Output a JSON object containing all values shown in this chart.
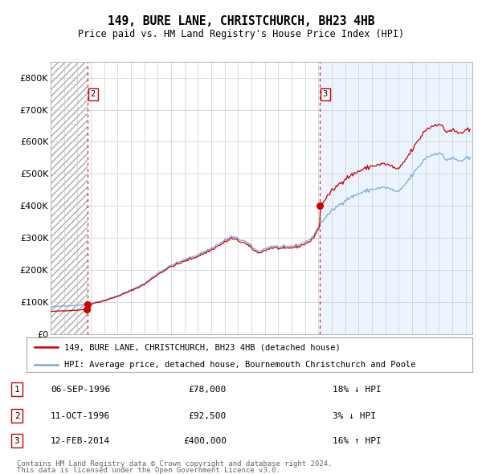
{
  "title1": "149, BURE LANE, CHRISTCHURCH, BH23 4HB",
  "title2": "Price paid vs. HM Land Registry's House Price Index (HPI)",
  "legend1": "149, BURE LANE, CHRISTCHURCH, BH23 4HB (detached house)",
  "legend2": "HPI: Average price, detached house, Bournemouth Christchurch and Poole",
  "transactions": [
    {
      "label": "1",
      "date": "06-SEP-1996",
      "date_num": 1996.69,
      "price": 78000,
      "hpi_pct": "18% ↓ HPI"
    },
    {
      "label": "2",
      "date": "11-OCT-1996",
      "date_num": 1996.78,
      "price": 92500,
      "hpi_pct": "3% ↓ HPI"
    },
    {
      "label": "3",
      "date": "12-FEB-2014",
      "date_num": 2014.12,
      "price": 400000,
      "hpi_pct": "16% ↑ HPI"
    }
  ],
  "vline_dates": [
    1996.78,
    2014.12
  ],
  "vline_labels": [
    "2",
    "3"
  ],
  "table_rows": [
    [
      "1",
      "06-SEP-1996",
      "£78,000",
      "18% ↓ HPI"
    ],
    [
      "2",
      "11-OCT-1996",
      "£92,500",
      "3% ↓ HPI"
    ],
    [
      "3",
      "12-FEB-2014",
      "£400,000",
      "16% ↑ HPI"
    ]
  ],
  "footnote1": "Contains HM Land Registry data © Crown copyright and database right 2024.",
  "footnote2": "This data is licensed under the Open Government Licence v3.0.",
  "xmin": 1994.0,
  "xmax": 2025.5,
  "ymin": 0,
  "ymax": 850000,
  "hatch_end": 1996.78,
  "shade_start": 2014.12,
  "background_color": "#ffffff",
  "grid_color": "#cccccc",
  "hpi_color": "#7aaadd",
  "property_color": "#cc0000",
  "shade_color": "#ddeeff",
  "hpi_control_points": [
    [
      1994.0,
      85000
    ],
    [
      1995.0,
      88000
    ],
    [
      1996.0,
      90000
    ],
    [
      1997.0,
      96000
    ],
    [
      1998.0,
      106000
    ],
    [
      1999.0,
      120000
    ],
    [
      2000.0,
      138000
    ],
    [
      2001.0,
      158000
    ],
    [
      2002.0,
      190000
    ],
    [
      2003.0,
      215000
    ],
    [
      2004.0,
      232000
    ],
    [
      2005.0,
      248000
    ],
    [
      2006.0,
      268000
    ],
    [
      2007.5,
      305000
    ],
    [
      2008.5,
      290000
    ],
    [
      2009.5,
      258000
    ],
    [
      2010.5,
      275000
    ],
    [
      2011.5,
      272000
    ],
    [
      2012.5,
      278000
    ],
    [
      2013.5,
      298000
    ],
    [
      2014.12,
      345000
    ],
    [
      2015.0,
      385000
    ],
    [
      2016.0,
      418000
    ],
    [
      2017.0,
      438000
    ],
    [
      2018.0,
      452000
    ],
    [
      2019.0,
      458000
    ],
    [
      2020.0,
      442000
    ],
    [
      2021.0,
      495000
    ],
    [
      2022.0,
      550000
    ],
    [
      2023.0,
      568000
    ],
    [
      2023.5,
      545000
    ],
    [
      2024.0,
      548000
    ],
    [
      2024.5,
      540000
    ],
    [
      2025.3,
      548000
    ]
  ]
}
